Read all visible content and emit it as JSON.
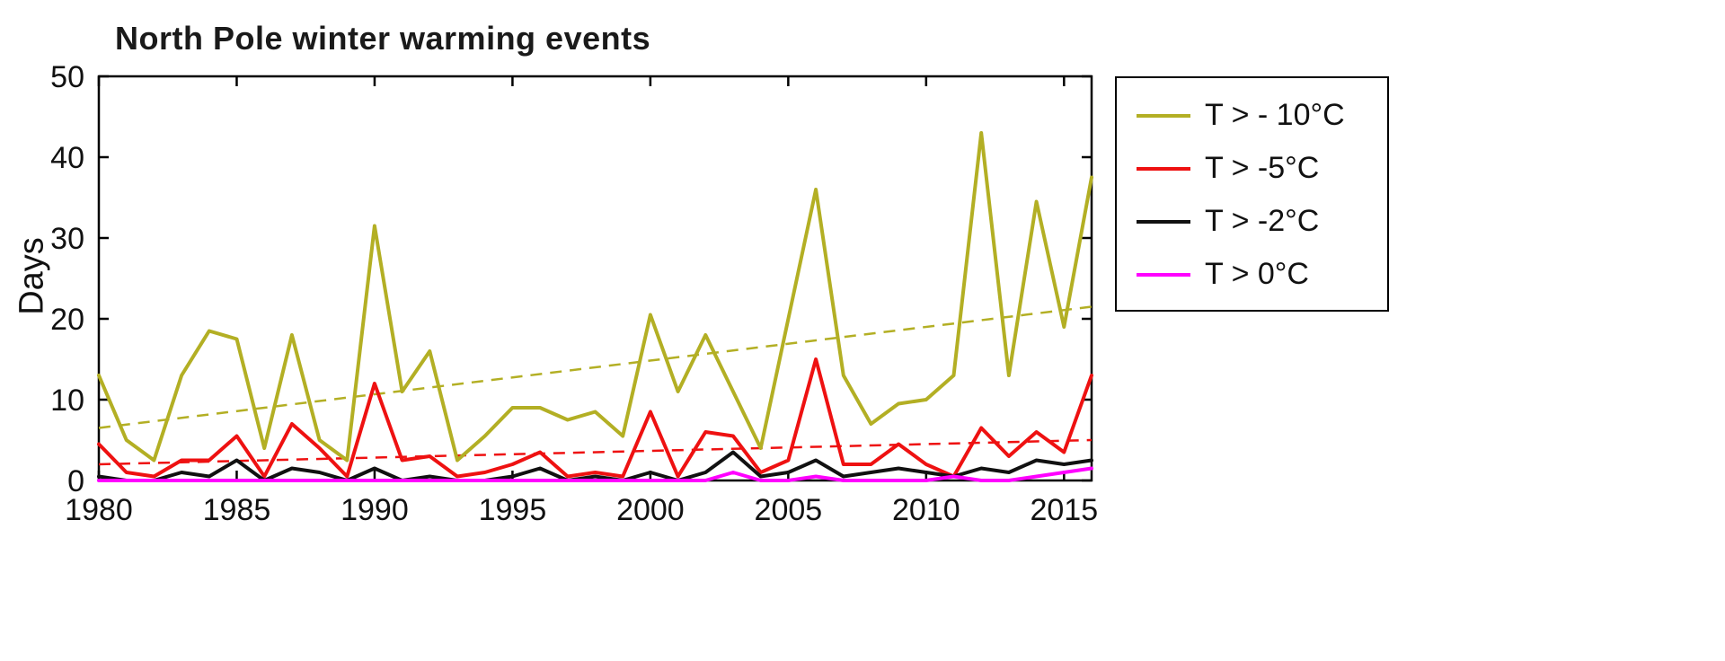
{
  "chart_data": {
    "type": "line",
    "title": "North Pole winter warming events",
    "xlabel": "",
    "ylabel": "Days",
    "xlim": [
      1980,
      2016
    ],
    "ylim": [
      0,
      50
    ],
    "xticks": [
      1980,
      1985,
      1990,
      1995,
      2000,
      2005,
      2010,
      2015
    ],
    "yticks": [
      0,
      10,
      20,
      30,
      40,
      50
    ],
    "grid": false,
    "legend_position": "outside-right-top",
    "years": [
      1980,
      1981,
      1982,
      1983,
      1984,
      1985,
      1986,
      1987,
      1988,
      1989,
      1990,
      1991,
      1992,
      1993,
      1994,
      1995,
      1996,
      1997,
      1998,
      1999,
      2000,
      2001,
      2002,
      2003,
      2004,
      2005,
      2006,
      2007,
      2008,
      2009,
      2010,
      2011,
      2012,
      2013,
      2014,
      2015,
      2016
    ],
    "series": [
      {
        "id": "t-gt-minus10c",
        "name": "T > - 10°C",
        "color": "#b3af24",
        "values": [
          13,
          5,
          2.5,
          13,
          18.5,
          17.5,
          4,
          18,
          5,
          2.5,
          31.5,
          11,
          16,
          2.5,
          5.5,
          9,
          9,
          7.5,
          8.5,
          5.5,
          20.5,
          11,
          18,
          11,
          4,
          20,
          36,
          13,
          7,
          9.5,
          10,
          13,
          43,
          13,
          34.5,
          19,
          37.5
        ]
      },
      {
        "id": "t-gt-minus5c",
        "name": "T > -5°C",
        "color": "#ee1111",
        "values": [
          4.5,
          1,
          0.5,
          2.5,
          2.5,
          5.5,
          0.5,
          7,
          4,
          0.5,
          12,
          2.5,
          3,
          0.5,
          1,
          2,
          3.5,
          0.5,
          1,
          0.5,
          8.5,
          0.5,
          6,
          5.5,
          1,
          2.5,
          15,
          2,
          2,
          4.5,
          2,
          0.5,
          6.5,
          3,
          6,
          3.5,
          13
        ]
      },
      {
        "id": "t-gt-minus2c",
        "name": "T > -2°C",
        "color": "#111111",
        "values": [
          0.5,
          0,
          0,
          1,
          0.5,
          2.5,
          0,
          1.5,
          1,
          0,
          1.5,
          0,
          0.5,
          0,
          0,
          0.5,
          1.5,
          0,
          0.5,
          0,
          1,
          0,
          1,
          3.5,
          0.5,
          1,
          2.5,
          0.5,
          1,
          1.5,
          1,
          0.5,
          1.5,
          1,
          2.5,
          2,
          2.5
        ]
      },
      {
        "id": "t-gt-0c",
        "name": "T > 0°C",
        "color": "#ff00ff",
        "values": [
          0,
          0,
          0,
          0,
          0,
          0,
          0,
          0,
          0,
          0,
          0,
          0,
          0,
          0,
          0,
          0,
          0,
          0,
          0,
          0,
          0,
          0,
          0,
          1,
          0,
          0,
          0.5,
          0,
          0,
          0,
          0,
          0.5,
          0,
          0,
          0.5,
          1,
          1.5
        ]
      }
    ],
    "trend_lines": [
      {
        "id": "trend-t-gt-minus10c",
        "series": "T > - 10°C",
        "color": "#b3af24",
        "style": "dashed",
        "start": [
          1980,
          6.5
        ],
        "end": [
          2016,
          21.5
        ]
      },
      {
        "id": "trend-t-gt-minus5c",
        "series": "T > -5°C",
        "color": "#ee1111",
        "style": "dashed",
        "start": [
          1980,
          2
        ],
        "end": [
          2016,
          5
        ]
      }
    ]
  }
}
